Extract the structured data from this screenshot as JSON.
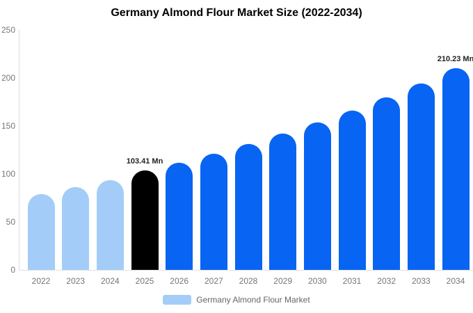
{
  "chart_data": {
    "type": "bar",
    "title": "Germany Almond Flour Market Size (2022-2034)",
    "xlabel": "",
    "ylabel": "",
    "categories": [
      "2022",
      "2023",
      "2024",
      "2025",
      "2026",
      "2027",
      "2028",
      "2029",
      "2030",
      "2031",
      "2032",
      "2033",
      "2034"
    ],
    "values": [
      79,
      86.5,
      93.5,
      103.41,
      111.9,
      121.1,
      131.0,
      141.7,
      153.4,
      166.0,
      179.6,
      194.3,
      210.23
    ],
    "unit": "Mn",
    "series_name": "Germany Almond Flour Market",
    "ylim": [
      0,
      250
    ],
    "yticks": [
      0,
      50,
      100,
      150,
      200,
      250
    ],
    "grid": false,
    "legend_position": "bottom",
    "bar_colors": [
      "#A3CDF8",
      "#A3CDF8",
      "#A3CDF8",
      "#000000",
      "#0864F2",
      "#0864F2",
      "#0864F2",
      "#0864F2",
      "#0864F2",
      "#0864F2",
      "#0864F2",
      "#0864F2",
      "#0864F2"
    ],
    "segment_colors": {
      "historical": "#A3CDF8",
      "base_year_highlight": "#000000",
      "forecast": "#0864F2"
    },
    "annotations": [
      {
        "category": "2025",
        "text": "103.41 Mn"
      },
      {
        "category": "2034",
        "text": "210.23 Mn"
      }
    ]
  },
  "legend": {
    "label": "Germany Almond Flour Market",
    "swatch_color": "#A3CDF8"
  },
  "colors": {
    "title_text": "#000000",
    "tick_text": "#757575",
    "annotation_text": "#222222",
    "axis_line": "#dddddd",
    "legend_text": "#666666",
    "background": "#ffffff"
  }
}
